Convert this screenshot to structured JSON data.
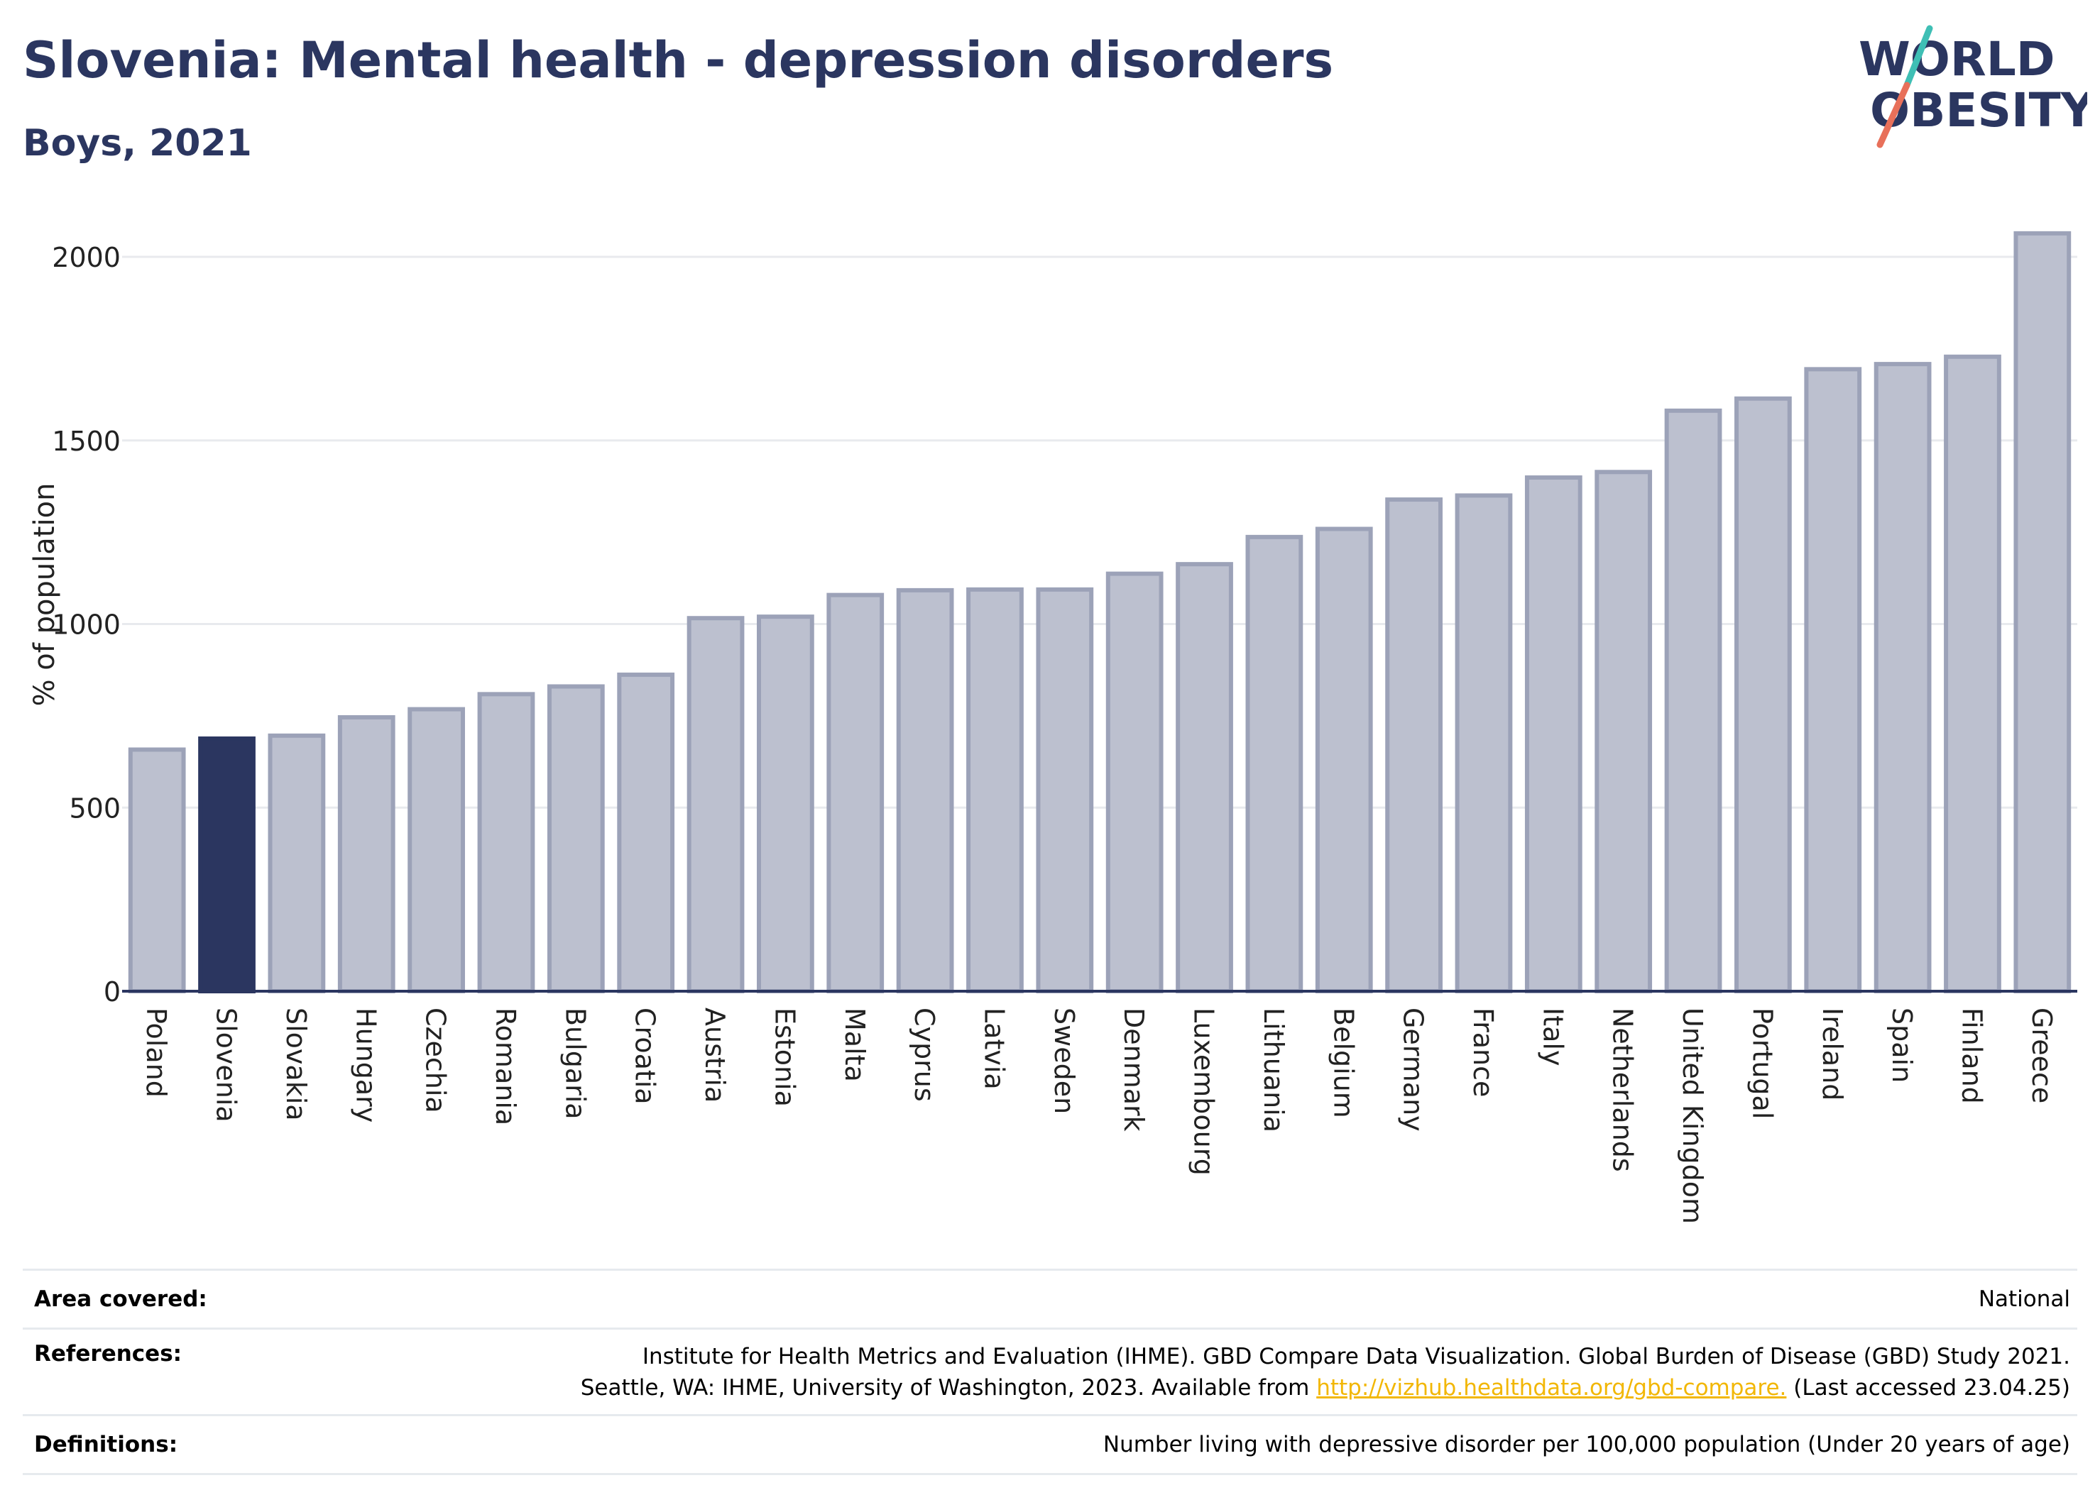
{
  "header": {
    "title": "Slovenia: Mental health - depression disorders",
    "subtitle": "Boys, 2021"
  },
  "logo": {
    "line1": "WORLD",
    "line2": "OBESITY",
    "text_color": "#2b3660",
    "slash_colors": [
      "#3fbfb5",
      "#e8705a"
    ]
  },
  "chart_data": {
    "type": "bar",
    "title": "Slovenia: Mental health - depression disorders",
    "subtitle": "Boys, 2021",
    "xlabel": "",
    "ylabel": "% of population",
    "ylim": [
      0,
      2100
    ],
    "yticks": [
      0,
      500,
      1000,
      1500,
      2000
    ],
    "grid": true,
    "highlight": "Slovenia",
    "colors": {
      "bar": "#bcc0cf",
      "bar_border": "#9ca2b8",
      "highlight": "#2b3660"
    },
    "categories": [
      "Poland",
      "Slovenia",
      "Slovakia",
      "Hungary",
      "Czechia",
      "Romania",
      "Bulgaria",
      "Croatia",
      "Austria",
      "Estonia",
      "Malta",
      "Cyprus",
      "Latvia",
      "Sweden",
      "Denmark",
      "Luxembourg",
      "Lithuania",
      "Belgium",
      "Germany",
      "France",
      "Italy",
      "Netherlands",
      "United Kingdom",
      "Portugal",
      "Ireland",
      "Spain",
      "Finland",
      "Greece"
    ],
    "values": [
      658,
      688,
      696,
      746,
      768,
      809,
      830,
      862,
      1016,
      1020,
      1079,
      1092,
      1094,
      1094,
      1137,
      1163,
      1237,
      1259,
      1339,
      1350,
      1399,
      1414,
      1581,
      1614,
      1694,
      1708,
      1728,
      2064
    ]
  },
  "footer": {
    "rows": [
      {
        "label": "Area covered:",
        "lines": [
          "National"
        ]
      },
      {
        "label": "References:",
        "lines": [
          "Institute for Health Metrics and Evaluation (IHME). GBD Compare Data Visualization. Global Burden of Disease (GBD) Study 2021."
        ],
        "line2_before": "Seattle, WA: IHME, University of Washington, 2023. Available from ",
        "link": "http://vizhub.healthdata.org/gbd-compare.",
        "line2_after": " (Last accessed 23.04.25)"
      },
      {
        "label": "Definitions:",
        "lines": [
          "Number living with depressive disorder per 100,000 population (Under 20 years of age)"
        ]
      }
    ]
  }
}
